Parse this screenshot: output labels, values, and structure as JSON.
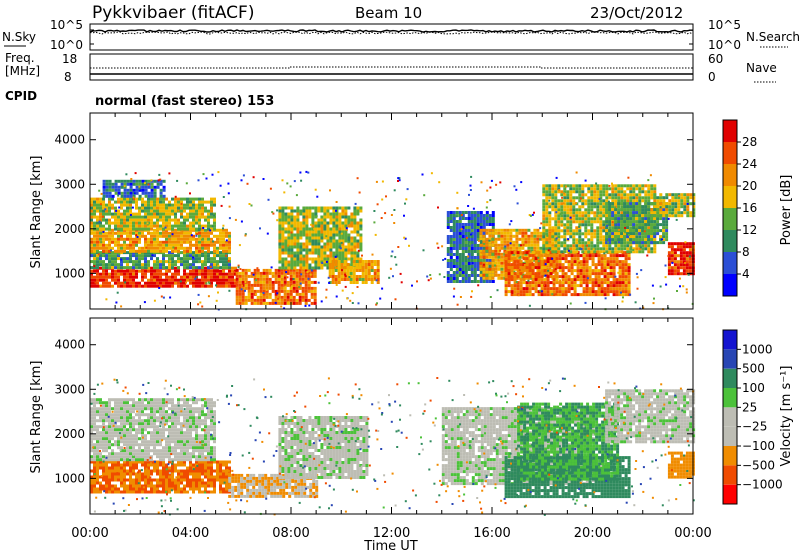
{
  "header": {
    "station": "Pykkvibaer (fitACF)",
    "beam": "Beam 10",
    "date": "23/Oct/2012"
  },
  "noise_panel": {
    "left_label": "N.Sky",
    "left_ticks": [
      "10^5",
      "10^0"
    ],
    "right_ticks": [
      "10^5",
      "10^0"
    ],
    "right_label": "N.Search"
  },
  "freq_panel": {
    "left_label_1": "Freq.",
    "left_label_2": "[MHz]",
    "left_ticks": [
      "18",
      "8"
    ],
    "right_ticks": [
      "60",
      "0"
    ],
    "right_label": "Nave"
  },
  "cpid": {
    "label": "CPID",
    "text": "normal (fast stereo) 153"
  },
  "x_axis": {
    "label": "Time UT",
    "ticks": [
      "00:00",
      "04:00",
      "08:00",
      "12:00",
      "16:00",
      "20:00",
      "00:00"
    ]
  },
  "colors": {
    "power": [
      "#0000ff",
      "#2b4fd6",
      "#2f8a5e",
      "#5aaa3c",
      "#f2b800",
      "#f08a00",
      "#f04b00",
      "#e00000"
    ],
    "velocity": [
      "#ff0000",
      "#f04b00",
      "#f08c00",
      "#bdbdb4",
      "#bdbdb4",
      "#4cc23a",
      "#2f8a5e",
      "#2846b4",
      "#1414d0"
    ]
  },
  "chart_data": [
    {
      "type": "heatmap",
      "name": "power",
      "ylabel": "Slant Range [km]",
      "yticks": [
        "1000",
        "2000",
        "3000",
        "4000"
      ],
      "ylim": [
        200,
        4600
      ],
      "xlim": [
        0,
        24
      ],
      "colorbar_label": "Power [dB]",
      "colorbar_ticks": [
        "4",
        "8",
        "12",
        "16",
        "20",
        "24",
        "28"
      ],
      "clim": [
        0,
        32
      ],
      "regions": [
        {
          "t0": 0.0,
          "t1": 5.8,
          "r0": 700,
          "r1": 1150,
          "level": 28
        },
        {
          "t0": 0.0,
          "t1": 5.5,
          "r0": 1150,
          "r1": 1500,
          "level": 12
        },
        {
          "t0": 0.0,
          "t1": 5.5,
          "r0": 1500,
          "r1": 2000,
          "level": 20
        },
        {
          "t0": 0.0,
          "t1": 5.0,
          "r0": 2000,
          "r1": 2700,
          "level": 16
        },
        {
          "t0": 0.5,
          "t1": 3.0,
          "r0": 2700,
          "r1": 3100,
          "level": 8
        },
        {
          "t0": 5.8,
          "t1": 9.0,
          "r0": 350,
          "r1": 1100,
          "level": 24
        },
        {
          "t0": 7.5,
          "t1": 10.8,
          "r0": 1100,
          "r1": 2500,
          "level": 16
        },
        {
          "t0": 9.5,
          "t1": 11.5,
          "r0": 800,
          "r1": 1300,
          "level": 20
        },
        {
          "t0": 14.2,
          "t1": 16.0,
          "r0": 800,
          "r1": 2400,
          "level": 8
        },
        {
          "t0": 15.5,
          "t1": 18.5,
          "r0": 900,
          "r1": 2000,
          "level": 20
        },
        {
          "t0": 16.5,
          "t1": 21.5,
          "r0": 500,
          "r1": 1500,
          "level": 24
        },
        {
          "t0": 18.0,
          "t1": 22.5,
          "r0": 1500,
          "r1": 3000,
          "level": 16
        },
        {
          "t0": 20.5,
          "t1": 23.0,
          "r0": 1700,
          "r1": 2600,
          "level": 12
        },
        {
          "t0": 22.3,
          "t1": 24.0,
          "r0": 2300,
          "r1": 2800,
          "level": 16
        },
        {
          "t0": 23.0,
          "t1": 24.0,
          "r0": 1000,
          "r1": 1700,
          "level": 28
        }
      ]
    },
    {
      "type": "heatmap",
      "name": "velocity",
      "ylabel": "Slant Range [km]",
      "yticks": [
        "1000",
        "2000",
        "3000",
        "4000"
      ],
      "ylim": [
        200,
        4600
      ],
      "xlim": [
        0,
        24
      ],
      "colorbar_label": "Velocity [m s⁻¹]",
      "colorbar_ticks": [
        "1000",
        "500",
        "100",
        "25",
        "−25",
        "−100",
        "−500",
        "−1000"
      ],
      "clim": [
        -1200,
        1200
      ],
      "regions": [
        {
          "t0": 0.0,
          "t1": 5.5,
          "r0": 700,
          "r1": 1400,
          "level": -500
        },
        {
          "t0": 0.0,
          "t1": 5.0,
          "r0": 1400,
          "r1": 2800,
          "level": 0
        },
        {
          "t0": 5.5,
          "t1": 9.0,
          "r0": 600,
          "r1": 1100,
          "level": -100
        },
        {
          "t0": 7.5,
          "t1": 11.0,
          "r0": 1000,
          "r1": 2400,
          "level": 0
        },
        {
          "t0": 14.0,
          "t1": 20.0,
          "r0": 900,
          "r1": 2600,
          "level": 0
        },
        {
          "t0": 16.5,
          "t1": 21.5,
          "r0": 600,
          "r1": 1500,
          "level": 300
        },
        {
          "t0": 17.0,
          "t1": 21.0,
          "r0": 1000,
          "r1": 2700,
          "level": 100
        },
        {
          "t0": 20.5,
          "t1": 24.0,
          "r0": 1800,
          "r1": 3000,
          "level": 0
        },
        {
          "t0": 23.0,
          "t1": 24.0,
          "r0": 1000,
          "r1": 1600,
          "level": -300
        }
      ]
    }
  ]
}
